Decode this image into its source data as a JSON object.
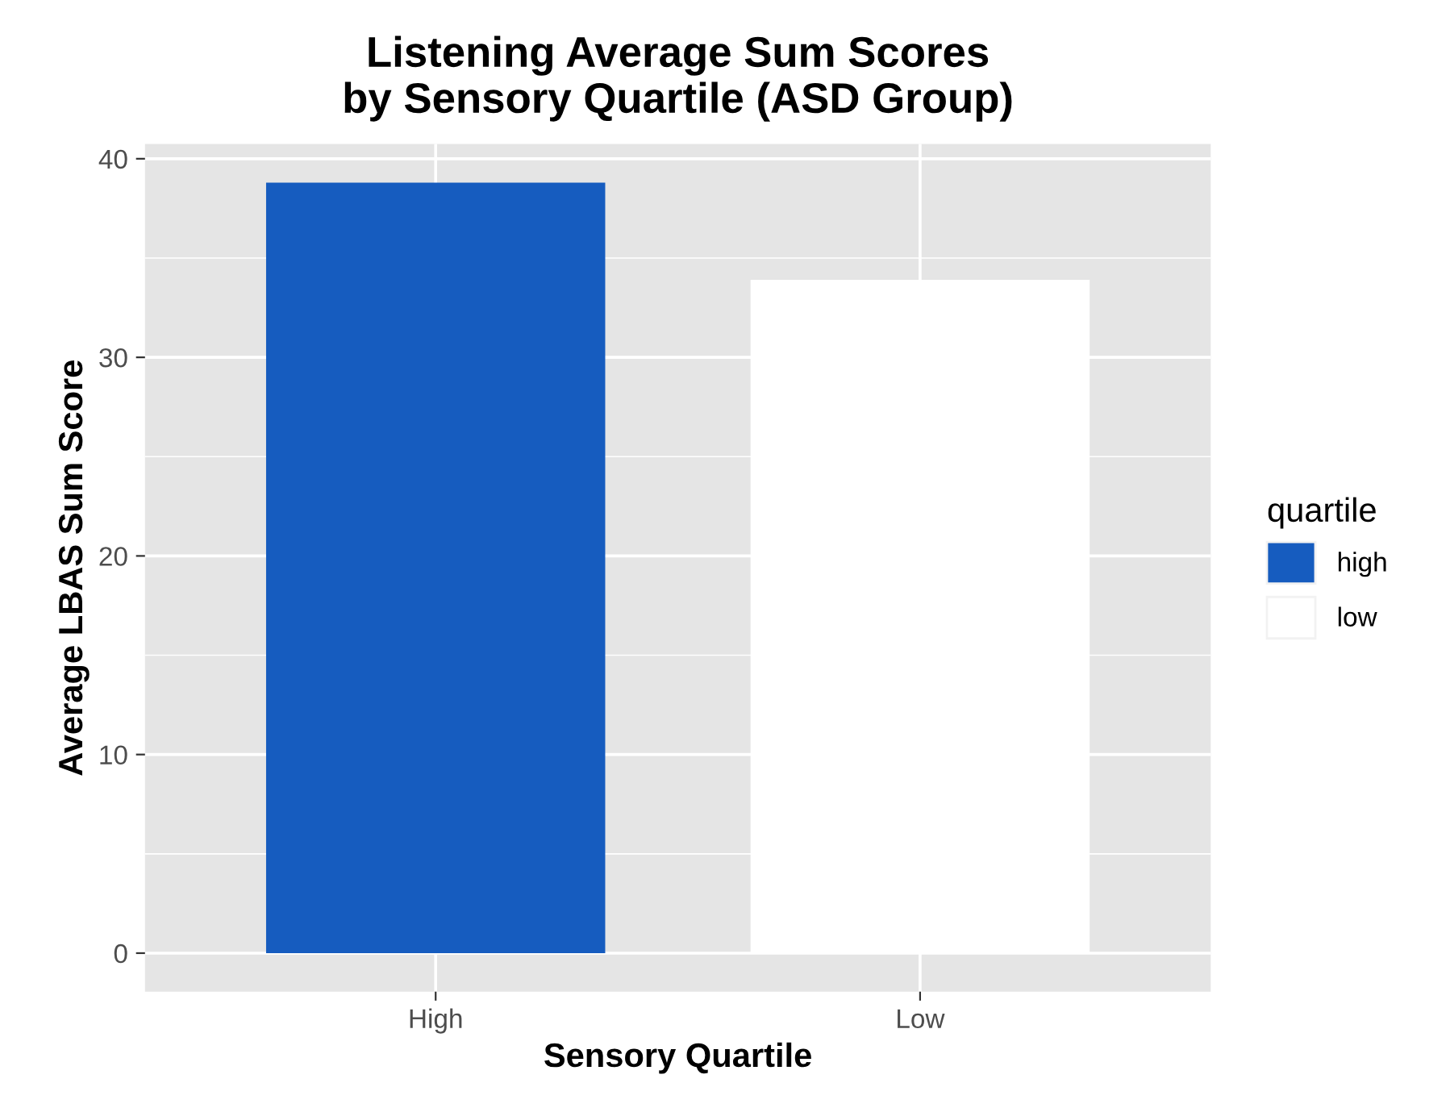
{
  "chart_data": {
    "type": "bar",
    "title": "Listening Average Sum Scores\nby Sensory Quartile (ASD Group)",
    "xlabel": "Sensory Quartile",
    "ylabel": "Average LBAS Sum Score",
    "legend_title": "quartile",
    "categories": [
      "High",
      "Low"
    ],
    "series": [
      {
        "name": "high",
        "color": "#165cbf",
        "values": [
          38.8,
          null
        ]
      },
      {
        "name": "low",
        "color": "#ffffff",
        "values": [
          null,
          33.9
        ]
      }
    ],
    "ylim": [
      -1.94,
      40.74
    ],
    "yticks": [
      0,
      10,
      20,
      30,
      40
    ],
    "grid": true,
    "legend": "right"
  }
}
